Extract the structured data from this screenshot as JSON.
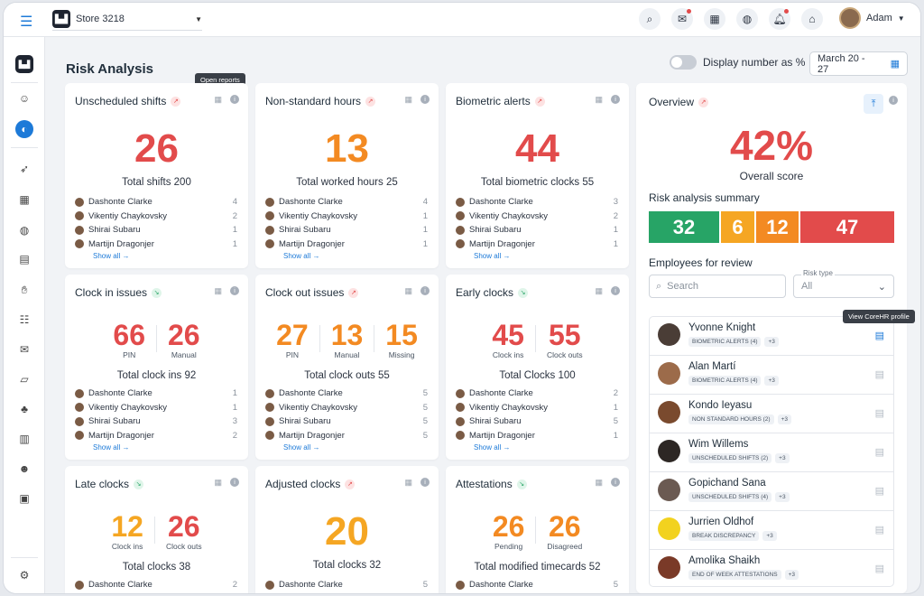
{
  "topbar": {
    "store": "Store 3218",
    "user": "Adam"
  },
  "page": {
    "title": "Risk Analysis",
    "toggle_label": "Display number as %",
    "date_range": "March 20 - 27"
  },
  "tooltips": {
    "open_reports": "Open reports",
    "view_profile": "View CoreHR profile"
  },
  "cards": [
    {
      "title": "Unscheduled shifts",
      "trend": "up",
      "big": "26",
      "color": "red",
      "total": "Total shifts 200",
      "people": [
        {
          "name": "Dashonte Clarke",
          "v": "4"
        },
        {
          "name": "Vikentiy Chaykovsky",
          "v": "2"
        },
        {
          "name": "Shirai Subaru",
          "v": "1"
        },
        {
          "name": "Martijn Dragonjer",
          "v": "1"
        }
      ],
      "show_all": "Show all →"
    },
    {
      "title": "Non-standard hours",
      "trend": "up",
      "big": "13",
      "color": "orange",
      "total": "Total worked hours 25",
      "people": [
        {
          "name": "Dashonte Clarke",
          "v": "4"
        },
        {
          "name": "Vikentiy Chaykovsky",
          "v": "1"
        },
        {
          "name": "Shirai Subaru",
          "v": "1"
        },
        {
          "name": "Martijn Dragonjer",
          "v": "1"
        }
      ],
      "show_all": "Show all →"
    },
    {
      "title": "Biometric alerts",
      "trend": "up",
      "big": "44",
      "color": "red",
      "total": "Total biometric clocks 55",
      "people": [
        {
          "name": "Dashonte Clarke",
          "v": "3"
        },
        {
          "name": "Vikentiy Chaykovsky",
          "v": "2"
        },
        {
          "name": "Shirai Subaru",
          "v": "1"
        },
        {
          "name": "Martijn Dragonjer",
          "v": "1"
        }
      ],
      "show_all": "Show all →"
    },
    {
      "title": "Clock in issues",
      "trend": "down",
      "pair": [
        {
          "n": "66",
          "l": "PIN",
          "color": "red"
        },
        {
          "n": "26",
          "l": "Manual",
          "color": "red"
        }
      ],
      "total": "Total clock ins 92",
      "people": [
        {
          "name": "Dashonte Clarke",
          "v": "1"
        },
        {
          "name": "Vikentiy Chaykovsky",
          "v": "1"
        },
        {
          "name": "Shirai Subaru",
          "v": "3"
        },
        {
          "name": "Martijn Dragonjer",
          "v": "2"
        }
      ],
      "show_all": "Show all →"
    },
    {
      "title": "Clock out issues",
      "trend": "up",
      "pair": [
        {
          "n": "27",
          "l": "PIN",
          "color": "orange"
        },
        {
          "n": "13",
          "l": "Manual",
          "color": "orange"
        },
        {
          "n": "15",
          "l": "Missing",
          "color": "orange"
        }
      ],
      "total": "Total clock outs 55",
      "people": [
        {
          "name": "Dashonte Clarke",
          "v": "5"
        },
        {
          "name": "Vikentiy Chaykovsky",
          "v": "5"
        },
        {
          "name": "Shirai Subaru",
          "v": "5"
        },
        {
          "name": "Martijn Dragonjer",
          "v": "5"
        }
      ],
      "show_all": "Show all →"
    },
    {
      "title": "Early clocks",
      "trend": "down",
      "pair": [
        {
          "n": "45",
          "l": "Clock ins",
          "color": "red"
        },
        {
          "n": "55",
          "l": "Clock outs",
          "color": "red"
        }
      ],
      "total": "Total Clocks 100",
      "people": [
        {
          "name": "Dashonte Clarke",
          "v": "2"
        },
        {
          "name": "Vikentiy Chaykovsky",
          "v": "1"
        },
        {
          "name": "Shirai Subaru",
          "v": "5"
        },
        {
          "name": "Martijn Dragonjer",
          "v": "1"
        }
      ],
      "show_all": "Show all →"
    },
    {
      "title": "Late clocks",
      "trend": "down",
      "pair": [
        {
          "n": "12",
          "l": "Clock ins",
          "color": "yellow"
        },
        {
          "n": "26",
          "l": "Clock outs",
          "color": "red"
        }
      ],
      "total": "Total clocks 38",
      "people": [
        {
          "name": "Dashonte Clarke",
          "v": "2"
        }
      ]
    },
    {
      "title": "Adjusted clocks",
      "trend": "up",
      "big": "20",
      "color": "yellow",
      "total": "Total clocks 32",
      "people": [
        {
          "name": "Dashonte Clarke",
          "v": "5"
        }
      ]
    },
    {
      "title": "Attestations",
      "trend": "down",
      "pair": [
        {
          "n": "26",
          "l": "Pending",
          "color": "orange"
        },
        {
          "n": "26",
          "l": "Disagreed",
          "color": "orange"
        }
      ],
      "total": "Total modified timecards 52",
      "people": [
        {
          "name": "Dashonte Clarke",
          "v": "5"
        }
      ]
    }
  ],
  "overview": {
    "title": "Overview",
    "score": "42%",
    "score_label": "Overall score",
    "summary_title": "Risk analysis summary",
    "segments": [
      {
        "v": "32",
        "color": "#27a466",
        "w": 78
      },
      {
        "v": "6",
        "color": "#f5a623",
        "w": 37
      },
      {
        "v": "12",
        "color": "#f38a22",
        "w": 47
      },
      {
        "v": "47",
        "color": "#e24b4b",
        "w": 104
      }
    ],
    "employees_title": "Employees for review",
    "search_placeholder": "Search",
    "risk_type_label": "Risk type",
    "risk_type_value": "All",
    "employees": [
      {
        "name": "Yvonne Knight",
        "tag": "BIOMETRIC ALERTS (4)",
        "more": "+3",
        "bg": "#4a3d36",
        "active": true
      },
      {
        "name": "Alan Martí",
        "tag": "BIOMETRIC ALERTS (4)",
        "more": "+3",
        "bg": "#9c6b4a"
      },
      {
        "name": "Kondo Ieyasu",
        "tag": "NON STANDARD HOURS (2)",
        "more": "+3",
        "bg": "#7a4a2e"
      },
      {
        "name": "Wim Willems",
        "tag": "UNSCHEDULED SHIFTS (2)",
        "more": "+3",
        "bg": "#2d2724"
      },
      {
        "name": "Gopichand Sana",
        "tag": "UNSCHEDULED SHIFTS (4)",
        "more": "+3",
        "bg": "#6b5a52"
      },
      {
        "name": "Jurrien Oldhof",
        "tag": "BREAK DISCREPANCY",
        "more": "+3",
        "bg": "#f2d21f"
      },
      {
        "name": "Amolika Shaikh",
        "tag": "END OF WEEK ATTESTATIONS",
        "more": "+3",
        "bg": "#7a3a28"
      }
    ]
  }
}
